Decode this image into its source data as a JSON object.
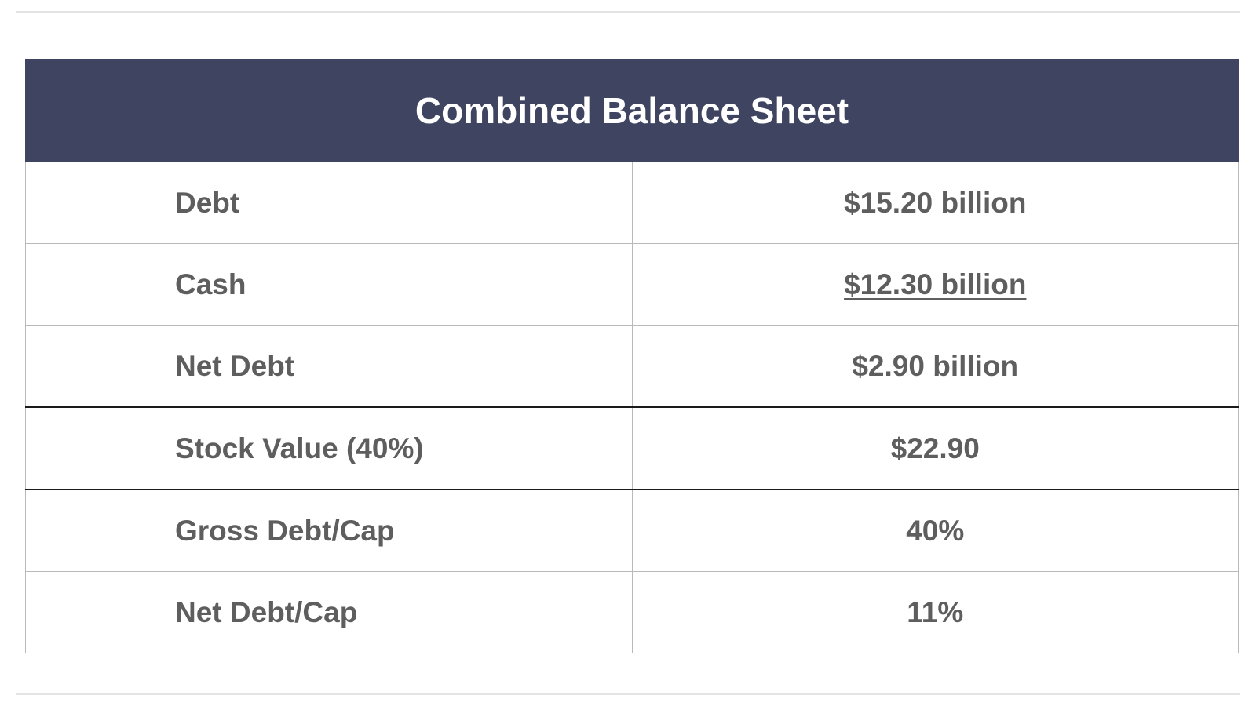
{
  "table": {
    "title": "Combined Balance Sheet",
    "rows": [
      {
        "label": "Debt",
        "value": "$15.20 billion"
      },
      {
        "label": "Cash",
        "value": "$12.30 billion"
      },
      {
        "label": "Net Debt",
        "value": "$2.90 billion"
      },
      {
        "label": "Stock Value (40%)",
        "value": "$22.90"
      },
      {
        "label": "Gross Debt/Cap",
        "value": "40%"
      },
      {
        "label": "Net Debt/Cap",
        "value": "11%"
      }
    ]
  },
  "colors": {
    "header_background": "#3f4461",
    "header_text": "#ffffff",
    "body_text": "#5e5e5e"
  }
}
